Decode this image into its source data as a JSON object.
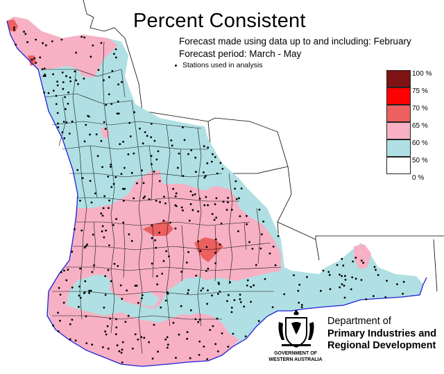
{
  "title": "Percent Consistent",
  "forecast_made": "Forecast made using data up to and including: February",
  "forecast_period": "Forecast period: March - May",
  "stations_label": "Stations used in analysis",
  "legend": {
    "items": [
      {
        "label": "100 %",
        "color": "#7f1212"
      },
      {
        "label": "75 %",
        "color": "#ff0000"
      },
      {
        "label": "70 %",
        "color": "#ec6060"
      },
      {
        "label": "65 %",
        "color": "#f7b0c4"
      },
      {
        "label": "60 %",
        "color": "#b0e0e4"
      },
      {
        "label": "50 %",
        "color": "#ffffff"
      }
    ],
    "bottom_label": "0 %"
  },
  "colors": {
    "blue_low": "#b0e0e4",
    "pink": "#f7b0c4",
    "red_medium": "#ec6060",
    "ocean_outline": "#1e1ed8",
    "boundaries": "#000000"
  },
  "footer": {
    "department_line1": "Department of",
    "department_line2": "Primary Industries and",
    "department_line3": "Regional Development",
    "government_line1": "GOVERNMENT OF",
    "government_line2": "WESTERN AUSTRALIA"
  }
}
